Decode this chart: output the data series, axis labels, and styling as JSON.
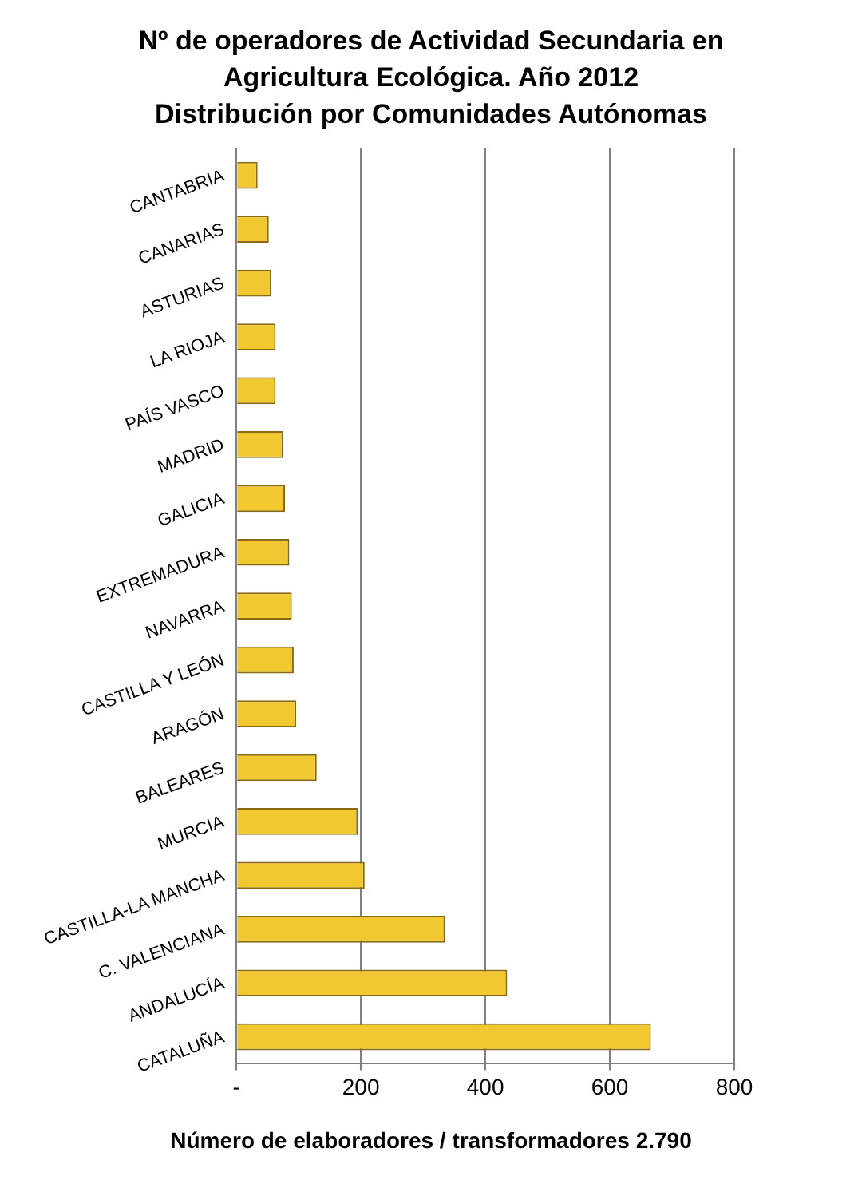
{
  "chart_data": {
    "type": "bar",
    "orientation": "horizontal",
    "title": "Nº de operadores de Actividad Secundaria en Agricultura Ecológica. Año 2012",
    "subtitle": "Distribución por Comunidades  Autónomas",
    "xlabel": "Número de elaboradores  / transformadores 2.790",
    "categories": [
      "CANTABRIA",
      "CANARIAS",
      "ASTURIAS",
      "LA RIOJA",
      "PAÍS VASCO",
      "MADRID",
      "GALICIA",
      "EXTREMADURA",
      "NAVARRA",
      "CASTILLA Y LEÓN",
      "ARAGÓN",
      "BALEARES",
      "MURCIA",
      "CASTILLA-LA MANCHA",
      "C. VALENCIANA",
      "ANDALUCÍA",
      "CATALUÑA"
    ],
    "values": [
      34,
      52,
      56,
      63,
      63,
      75,
      78,
      85,
      89,
      92,
      96,
      129,
      195,
      206,
      335,
      435,
      666
    ],
    "color": "#f2c830",
    "xlim": [
      0,
      800
    ],
    "xticks": [
      {
        "value": 0,
        "label": "-"
      },
      200,
      400,
      600,
      800
    ],
    "grid": "x",
    "legend": false
  }
}
